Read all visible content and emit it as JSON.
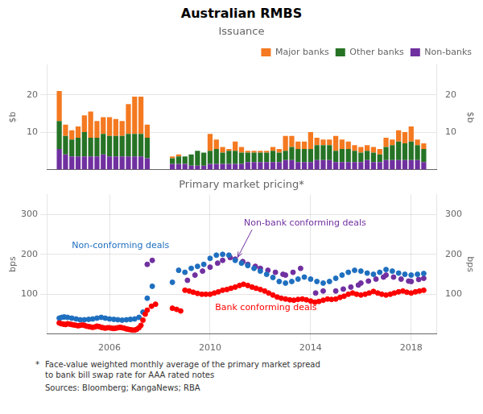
{
  "title": "Australian RMBS",
  "chart_data": [
    {
      "type": "bar",
      "title": "Issuance",
      "stacked": true,
      "legend": "upper right",
      "grid": true,
      "tick_labels": "y",
      "ylabel": "$b",
      "y2label": "$b",
      "x": [
        2004.0,
        2004.25,
        2004.5,
        2004.75,
        2005.0,
        2005.25,
        2005.5,
        2005.75,
        2006.0,
        2006.25,
        2006.5,
        2006.75,
        2007.0,
        2007.25,
        2007.5,
        2008.5,
        2008.75,
        2009.0,
        2009.25,
        2009.5,
        2009.75,
        2010.0,
        2010.25,
        2010.5,
        2010.75,
        2011.0,
        2011.25,
        2011.5,
        2011.75,
        2012.0,
        2012.25,
        2012.5,
        2012.75,
        2013.0,
        2013.25,
        2013.5,
        2013.75,
        2014.0,
        2014.25,
        2014.5,
        2014.75,
        2015.0,
        2015.25,
        2015.5,
        2015.75,
        2016.0,
        2016.25,
        2016.5,
        2016.75,
        2017.0,
        2017.25,
        2017.5,
        2017.75,
        2018.0,
        2018.25,
        2018.5
      ],
      "xlim": [
        2003.5,
        2019.0
      ],
      "ylim": [
        0,
        28
      ],
      "yticks": [
        10,
        20
      ],
      "y2lim": [
        0,
        28
      ],
      "y2ticks": [
        10,
        20
      ],
      "series": [
        {
          "name": "Non-banks",
          "color": "#7030A0",
          "values": [
            5.5,
            4.0,
            3.5,
            3.5,
            3.5,
            3.5,
            3.5,
            4.0,
            3.5,
            3.5,
            3.5,
            3.5,
            3.5,
            3.5,
            3.0,
            1.5,
            1.5,
            1.5,
            1.0,
            1.0,
            1.0,
            1.5,
            1.5,
            1.5,
            1.5,
            1.5,
            1.5,
            2.0,
            2.0,
            2.0,
            2.0,
            2.0,
            2.0,
            2.5,
            2.5,
            2.0,
            2.0,
            2.0,
            2.5,
            2.5,
            2.5,
            2.0,
            2.0,
            2.0,
            2.0,
            2.0,
            2.5,
            2.0,
            2.0,
            2.5,
            2.5,
            2.5,
            2.5,
            2.5,
            2.5,
            2.0
          ]
        },
        {
          "name": "Other banks",
          "color": "#267326",
          "values": [
            7.5,
            5.0,
            4.5,
            5.0,
            6.5,
            5.0,
            5.0,
            5.5,
            5.5,
            5.5,
            5.5,
            6.0,
            6.0,
            6.0,
            5.5,
            1.5,
            2.0,
            2.0,
            3.0,
            4.0,
            3.5,
            3.5,
            4.0,
            3.0,
            3.5,
            3.5,
            3.0,
            2.5,
            2.5,
            2.5,
            2.5,
            3.0,
            2.5,
            2.5,
            3.5,
            3.5,
            3.5,
            3.5,
            4.0,
            4.0,
            4.0,
            3.0,
            3.5,
            3.5,
            3.0,
            2.5,
            2.5,
            2.5,
            2.0,
            3.5,
            4.0,
            5.0,
            4.5,
            5.0,
            4.0,
            3.5
          ]
        },
        {
          "name": "Major banks",
          "color": "#F47920",
          "values": [
            8.0,
            3.0,
            2.5,
            3.0,
            4.5,
            7.0,
            4.5,
            4.5,
            5.0,
            4.5,
            4.0,
            8.0,
            10.0,
            10.0,
            3.5,
            0.5,
            0.5,
            0.0,
            0.0,
            0.0,
            0.0,
            4.5,
            2.5,
            1.5,
            0.5,
            2.5,
            1.5,
            0.5,
            0.5,
            0.5,
            0.5,
            1.0,
            1.0,
            4.0,
            3.0,
            2.0,
            2.0,
            4.5,
            2.0,
            1.5,
            1.5,
            4.0,
            2.5,
            2.0,
            1.5,
            1.5,
            1.5,
            1.5,
            1.5,
            2.5,
            1.5,
            3.0,
            3.0,
            4.0,
            1.5,
            1.5
          ]
        }
      ]
    },
    {
      "type": "scatter",
      "title": "Primary market pricing*",
      "grid": true,
      "ylabel": "bps",
      "y2label": "bps",
      "xlim": [
        2003.5,
        2019.0
      ],
      "xticks": [
        2006,
        2010,
        2014,
        2018
      ],
      "ylim": [
        0,
        350
      ],
      "yticks": [
        100,
        200,
        300
      ],
      "y2lim": [
        0,
        350
      ],
      "y2ticks": [
        100,
        200,
        300
      ],
      "series": [
        {
          "color": "#FF0000",
          "x": [
            2004.0,
            2004.08,
            2004.17,
            2004.25,
            2004.33,
            2004.42,
            2004.5,
            2004.58,
            2004.67,
            2004.75,
            2004.83,
            2004.92,
            2005.0,
            2005.08,
            2005.17,
            2005.25,
            2005.33,
            2005.42,
            2005.5,
            2005.58,
            2005.67,
            2005.75,
            2005.83,
            2005.92,
            2006.0,
            2006.08,
            2006.17,
            2006.25,
            2006.33,
            2006.42,
            2006.5,
            2006.58,
            2006.67,
            2006.75,
            2006.83,
            2006.92,
            2007.0,
            2007.08,
            2007.17,
            2007.25,
            2007.33,
            2007.42,
            2007.5,
            2007.67,
            2007.83,
            2008.5,
            2008.67,
            2008.83,
            2009.0,
            2009.17,
            2009.33,
            2009.5,
            2009.67,
            2009.83,
            2010.0,
            2010.17,
            2010.33,
            2010.5,
            2010.67,
            2010.83,
            2011.0,
            2011.17,
            2011.33,
            2011.5,
            2011.67,
            2011.83,
            2012.0,
            2012.17,
            2012.33,
            2012.5,
            2012.67,
            2012.83,
            2013.0,
            2013.17,
            2013.33,
            2013.5,
            2013.67,
            2013.83,
            2014.0,
            2014.17,
            2014.33,
            2014.5,
            2014.67,
            2014.83,
            2015.0,
            2015.17,
            2015.33,
            2015.5,
            2015.67,
            2015.83,
            2016.0,
            2016.17,
            2016.33,
            2016.5,
            2016.67,
            2016.83,
            2017.0,
            2017.17,
            2017.33,
            2017.5,
            2017.67,
            2017.83,
            2018.0,
            2018.17,
            2018.33,
            2018.5
          ],
          "values": [
            28,
            26,
            25,
            24,
            26,
            25,
            24,
            23,
            22,
            21,
            22,
            23,
            22,
            20,
            19,
            18,
            17,
            18,
            20,
            19,
            17,
            16,
            15,
            16,
            16,
            15,
            14,
            15,
            16,
            17,
            16,
            15,
            13,
            12,
            11,
            10,
            10,
            12,
            16,
            22,
            35,
            50,
            60,
            70,
            75,
            65,
            62,
            58,
            110,
            108,
            105,
            102,
            100,
            100,
            100,
            103,
            106,
            110,
            112,
            115,
            118,
            122,
            125,
            122,
            118,
            115,
            112,
            108,
            103,
            98,
            93,
            90,
            88,
            86,
            85,
            87,
            88,
            86,
            83,
            80,
            82,
            85,
            88,
            87,
            88,
            92,
            95,
            100,
            103,
            100,
            98,
            100,
            103,
            107,
            103,
            100,
            98,
            100,
            103,
            106,
            108,
            105,
            103,
            106,
            108,
            110
          ]
        },
        {
          "color": "#1F6FBF",
          "x": [
            2004.0,
            2004.1,
            2004.2,
            2004.33,
            2004.5,
            2004.67,
            2004.83,
            2005.0,
            2005.17,
            2005.33,
            2005.5,
            2005.67,
            2005.83,
            2006.0,
            2006.17,
            2006.33,
            2006.5,
            2006.67,
            2006.83,
            2007.0,
            2007.17,
            2007.33,
            2007.5,
            2007.7,
            2008.5,
            2008.75,
            2009.0,
            2009.25,
            2009.5,
            2009.75,
            2010.0,
            2010.25,
            2010.5,
            2010.75,
            2011.0,
            2011.25,
            2011.5,
            2011.75,
            2012.0,
            2012.25,
            2012.5,
            2012.75,
            2013.0,
            2013.25,
            2013.5,
            2013.75,
            2014.0,
            2014.25,
            2014.5,
            2014.75,
            2015.0,
            2015.25,
            2015.5,
            2015.75,
            2016.0,
            2016.25,
            2016.5,
            2016.75,
            2017.0,
            2017.25,
            2017.5,
            2017.75,
            2018.0,
            2018.25,
            2018.5
          ],
          "values": [
            40,
            42,
            43,
            42,
            40,
            38,
            36,
            36,
            37,
            38,
            40,
            42,
            40,
            38,
            37,
            36,
            35,
            36,
            37,
            38,
            42,
            55,
            90,
            120,
            130,
            160,
            155,
            165,
            170,
            175,
            190,
            198,
            200,
            198,
            185,
            178,
            172,
            165,
            158,
            150,
            142,
            132,
            128,
            132,
            138,
            143,
            138,
            132,
            128,
            132,
            140,
            148,
            155,
            160,
            158,
            153,
            150,
            155,
            162,
            158,
            153,
            150,
            148,
            150,
            152
          ]
        },
        {
          "color": "#7030A0",
          "x": [
            2007.5,
            2007.7,
            2009.1,
            2009.4,
            2009.7,
            2010.0,
            2010.3,
            2010.5,
            2010.8,
            2011.0,
            2011.3,
            2011.5,
            2011.8,
            2012.0,
            2012.3,
            2012.6,
            2012.9,
            2013.0,
            2013.3,
            2013.6,
            2014.2,
            2014.5,
            2015.0,
            2015.3,
            2015.6,
            2015.9,
            2016.0,
            2016.3,
            2016.6,
            2016.9,
            2017.0,
            2017.3,
            2017.6,
            2017.9,
            2018.0,
            2018.3,
            2018.5
          ],
          "values": [
            175,
            185,
            135,
            148,
            158,
            168,
            178,
            185,
            192,
            188,
            182,
            175,
            170,
            165,
            160,
            155,
            150,
            148,
            155,
            165,
            103,
            108,
            108,
            113,
            118,
            123,
            128,
            133,
            138,
            143,
            148,
            143,
            138,
            133,
            132,
            137,
            140
          ]
        }
      ],
      "annotations": [
        {
          "text": "Non-bank conforming deals",
          "x": 2011.35,
          "y": 268,
          "arrow_x": 2011.1,
          "arrow_y": 193,
          "color": "#7030A0"
        },
        {
          "text": "Non-conforming deals",
          "x": 2004.5,
          "y": 210,
          "color": "#1F6FBF"
        },
        {
          "text": "Bank conforming deals",
          "x": 2010.2,
          "y": 55,
          "color": "#FF0000"
        }
      ]
    }
  ],
  "footnotes": [
    {
      "mark": "*",
      "text": "Face-value weighted monthly average of the primary market spread\nto bank bill swap rate for AAA rated notes"
    },
    {
      "text": "Sources: Bloomberg; KangaNews; RBA"
    }
  ]
}
